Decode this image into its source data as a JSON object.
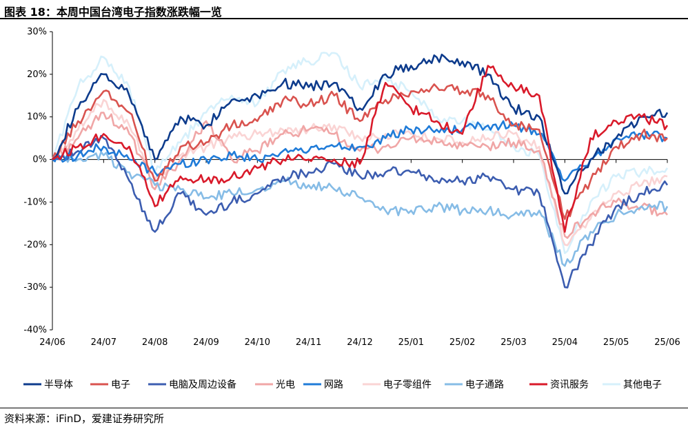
{
  "title": "图表 18：本周中国台湾电子指数涨跌幅一览",
  "source": "资料来源：iFinD，爱建证券研究所",
  "chart_data": {
    "type": "line",
    "title": "图表 18：本周中国台湾电子指数涨跌幅一览",
    "xlabel": "",
    "ylabel": "",
    "ylim": [
      -40,
      30
    ],
    "yticks": [
      "30%",
      "20%",
      "10%",
      "0%",
      "-10%",
      "-20%",
      "-30%",
      "-40%"
    ],
    "ytick_values": [
      30,
      20,
      10,
      0,
      -10,
      -20,
      -30,
      -40
    ],
    "xticks": [
      "24/06",
      "24/07",
      "24/08",
      "24/09",
      "24/10",
      "24/11",
      "24/12",
      "25/01",
      "25/02",
      "25/03",
      "25/04",
      "25/05",
      "25/06"
    ],
    "x_months": [
      "24/06",
      "24/06+",
      "24/07",
      "24/07+",
      "24/08",
      "24/08+",
      "24/09",
      "24/09+",
      "24/10",
      "24/10+",
      "24/11",
      "24/11+",
      "24/12",
      "24/12+",
      "25/01",
      "25/01+",
      "25/02",
      "25/02+",
      "25/03",
      "25/03+",
      "25/04",
      "25/04+",
      "25/05",
      "25/05+",
      "25/06"
    ],
    "grid": false,
    "legend": "bottom",
    "series": [
      {
        "name": "半导体",
        "color": "#0d3b8c",
        "values": [
          0,
          12,
          20,
          15,
          0,
          10,
          8,
          14,
          15,
          18,
          17,
          18,
          12,
          20,
          22,
          24,
          23,
          20,
          12,
          10,
          -8,
          0,
          5,
          10,
          11
        ]
      },
      {
        "name": "电子",
        "color": "#d9534f",
        "values": [
          0,
          9,
          16,
          11,
          -5,
          3,
          4,
          8,
          9,
          14,
          13,
          15,
          9,
          14,
          16,
          17,
          16,
          15,
          8,
          7,
          -14,
          -5,
          3,
          6,
          5
        ]
      },
      {
        "name": "电脑及周边设备",
        "color": "#3c5db0",
        "values": [
          0,
          2,
          5,
          -5,
          -17,
          -8,
          -13,
          -10,
          -8,
          -4,
          -3,
          -1,
          -4,
          -3,
          -3,
          -5,
          -5,
          -4,
          -7,
          -8,
          -30,
          -20,
          -11,
          -8,
          -6
        ]
      },
      {
        "name": "光电",
        "color": "#f0a6a6",
        "values": [
          0,
          5,
          11,
          6,
          -7,
          0,
          9,
          0,
          2,
          6,
          7,
          6,
          2,
          3,
          5,
          4,
          3,
          3,
          4,
          2,
          -18,
          -13,
          -10,
          -11,
          -13
        ]
      },
      {
        "name": "网路",
        "color": "#1f7bd8",
        "values": [
          0,
          1,
          3,
          0,
          -3,
          -1,
          0,
          1,
          0,
          2,
          2,
          3,
          3,
          5,
          7,
          7,
          7,
          8,
          8,
          6,
          -5,
          0,
          5,
          6,
          5
        ]
      },
      {
        "name": "电子零组件",
        "color": "#fad4d4",
        "values": [
          0,
          7,
          14,
          8,
          -5,
          1,
          3,
          5,
          6,
          7,
          7,
          8,
          5,
          6,
          6,
          5,
          4,
          5,
          6,
          3,
          -20,
          -14,
          -8,
          -6,
          -4
        ]
      },
      {
        "name": "电子通路",
        "color": "#86bce6",
        "values": [
          0,
          0,
          1,
          -3,
          -6,
          -7,
          -9,
          -8,
          -7,
          -5,
          -6,
          -7,
          -9,
          -12,
          -12,
          -11,
          -12,
          -12,
          -13,
          -12,
          -25,
          -17,
          -13,
          -11,
          -11
        ]
      },
      {
        "name": "资讯服务",
        "color": "#d91a2a",
        "values": [
          0,
          3,
          6,
          3,
          -11,
          -4,
          -5,
          -4,
          -2,
          0,
          0,
          0,
          -1,
          18,
          12,
          9,
          6,
          22,
          17,
          15,
          -17,
          5,
          9,
          10,
          8
        ]
      },
      {
        "name": "其他电子",
        "color": "#d6f0fb",
        "values": [
          0,
          17,
          24,
          17,
          -3,
          4,
          11,
          15,
          13,
          21,
          23,
          25,
          17,
          19,
          16,
          10,
          9,
          7,
          3,
          1,
          -22,
          -10,
          -4,
          -3,
          -2
        ]
      }
    ]
  }
}
